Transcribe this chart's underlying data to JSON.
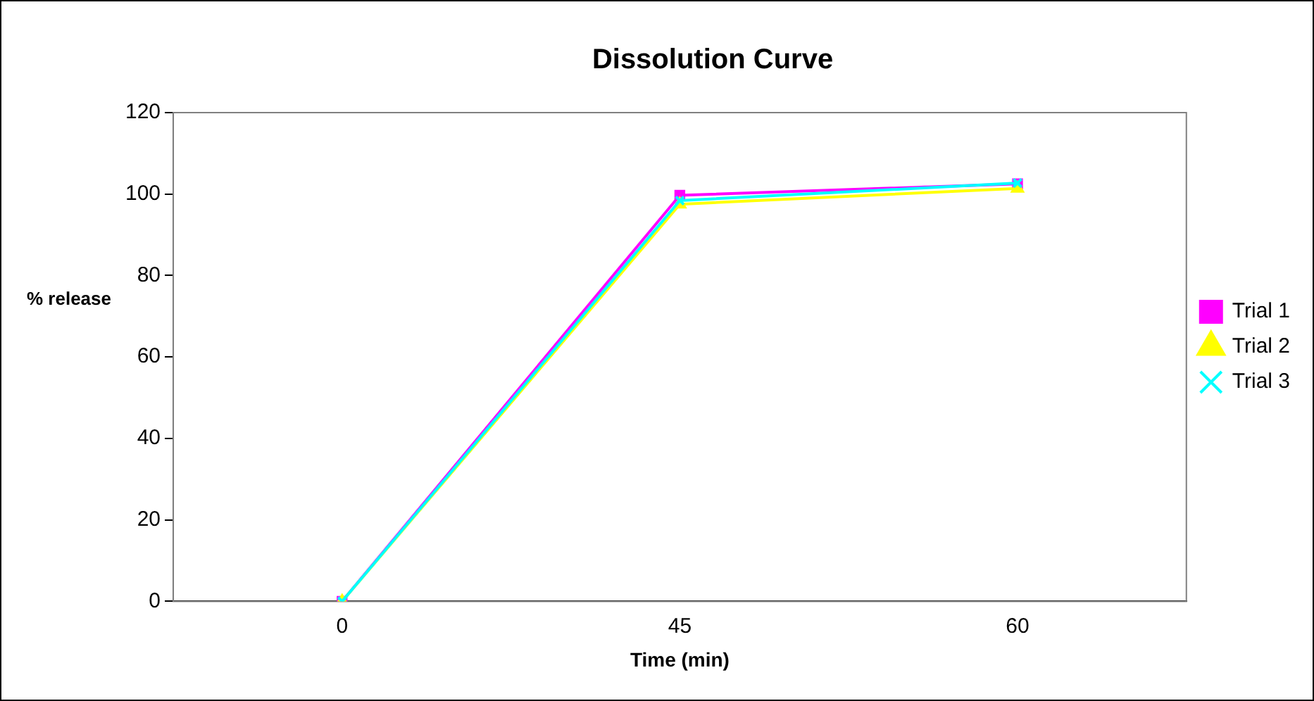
{
  "chart_data": {
    "type": "line",
    "title": "Dissolution Curve",
    "xlabel": "Time (min)",
    "ylabel": "% release",
    "categories": [
      "0",
      "45",
      "60"
    ],
    "series": [
      {
        "name": "Trial 1",
        "color": "#ff00ff",
        "marker": "square",
        "values": [
          0,
          99.7,
          102.5
        ]
      },
      {
        "name": "Trial 2",
        "color": "#ffff00",
        "marker": "triangle",
        "values": [
          0,
          97.5,
          101.4
        ]
      },
      {
        "name": "Trial 3",
        "color": "#00ffff",
        "marker": "cross",
        "values": [
          0,
          98.4,
          102.7
        ]
      }
    ],
    "ylim": [
      0,
      120
    ],
    "yticks": [
      0,
      20,
      40,
      60,
      80,
      100,
      120
    ],
    "grid": false,
    "legend": "right",
    "line_style": "solid"
  }
}
